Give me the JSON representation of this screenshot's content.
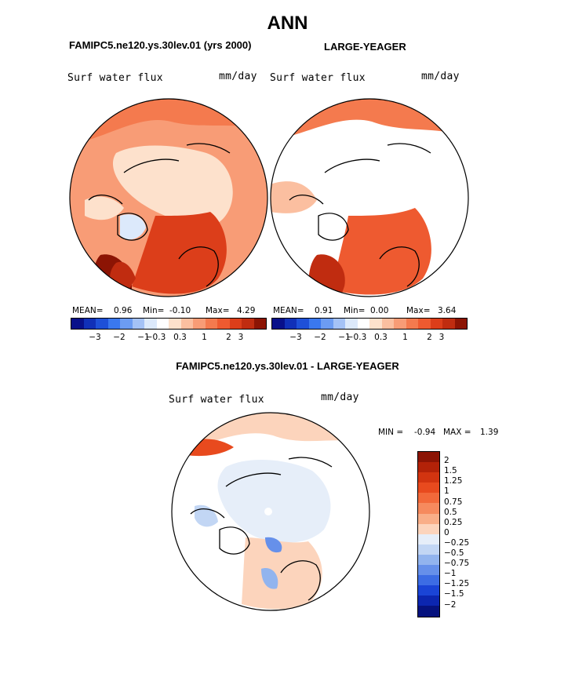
{
  "title": "ANN",
  "case_left": "FAMIPC5.ne120.ys.30lev.01 (yrs 2000)",
  "case_right": "LARGE-YEAGER",
  "diff_title": "FAMIPC5.ne120.ys.30lev.01 - LARGE-YEAGER",
  "panels": {
    "left": {
      "variable": "Surf water flux",
      "units": "mm/day",
      "mean_label": "MEAN=",
      "mean": "0.96",
      "min_label": "Min=",
      "min": "-0.10",
      "max_label": "Max=",
      "max": "4.29"
    },
    "right": {
      "variable": "Surf water flux",
      "units": "mm/day",
      "mean_label": "MEAN=",
      "mean": "0.91",
      "min_label": "Min=",
      "min": "0.00",
      "max_label": "Max=",
      "max": "3.64"
    },
    "diff": {
      "variable": "Surf water flux",
      "units": "mm/day",
      "min_label": "MIN =",
      "min": "-0.94",
      "max_label": "MAX =",
      "max": "1.39"
    }
  },
  "colorbar_horizontal": {
    "ticks": [
      "-3",
      "-2",
      "-1",
      "-0.3",
      "0.3",
      "1",
      "2",
      "3"
    ],
    "colors": [
      "#08108a",
      "#1030b8",
      "#1e50d8",
      "#3a78ee",
      "#6c9cf2",
      "#a4c2f6",
      "#dce9fb",
      "#ffffff",
      "#fde1cc",
      "#fbbfa0",
      "#f89c76",
      "#f47a4e",
      "#ee5a30",
      "#dc3e1a",
      "#c02c10",
      "#8c1404"
    ]
  },
  "colorbar_vertical": {
    "labels": [
      "2",
      "1.5",
      "1.25",
      "1",
      "0.75",
      "0.5",
      "0.25",
      "0",
      "-0.25",
      "-0.5",
      "-0.75",
      "-1",
      "-1.25",
      "-1.5",
      "-2"
    ],
    "colors": [
      "#8c1404",
      "#b32208",
      "#d23410",
      "#e84a1e",
      "#f2693a",
      "#f68a5e",
      "#f9ae88",
      "#fcd4bc",
      "#e6eef9",
      "#c2d6f4",
      "#92b4ee",
      "#6690ea",
      "#3c6ce4",
      "#1a44d6",
      "#0c26b0",
      "#06127e"
    ]
  },
  "map_colors": {
    "land_outline": "#000000",
    "left_base": "#f89c76",
    "left_ice": "#fde1cc",
    "left_high": "#dc3e1a",
    "left_max": "#8c1404",
    "right_high": "#ee5a30",
    "right_mid": "#fbbfa0",
    "diff_neutral": "#ffffff",
    "diff_pos": "#fcd4bc",
    "diff_neg": "#c2d6f4"
  }
}
